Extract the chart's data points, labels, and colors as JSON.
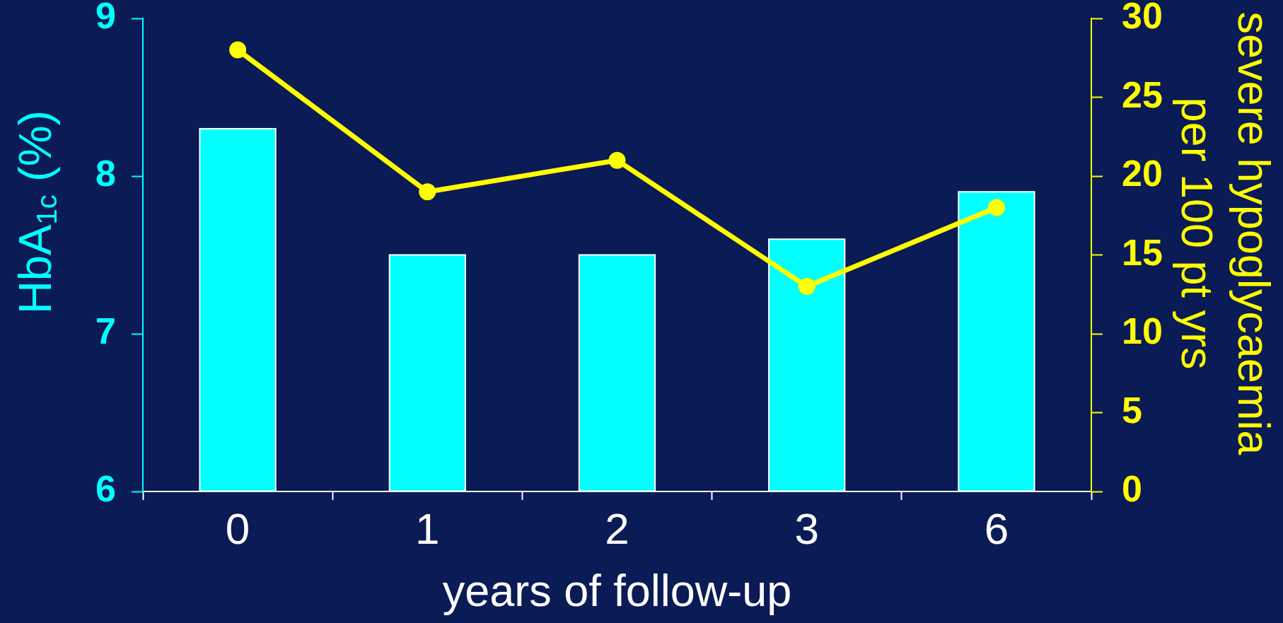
{
  "chart_data": {
    "type": "bar",
    "categories": [
      "0",
      "1",
      "2",
      "3",
      "6"
    ],
    "xlabel": "years of follow-up",
    "ylabel": "HbA$_{1c}$ (%)",
    "y2label": "severe hypoglycaemia per 100 pt yrs",
    "ylim": [
      6,
      9
    ],
    "yticks": [
      6,
      7,
      8,
      9
    ],
    "y2lim": [
      0,
      30
    ],
    "y2ticks": [
      0,
      5,
      10,
      15,
      20,
      25,
      30
    ],
    "series": [
      {
        "color": "#00ffff",
        "values": [
          8.3,
          7.5,
          7.5,
          7.6,
          7.9
        ]
      },
      {
        "type": "line",
        "axis": "y2",
        "color": "#ffff00",
        "marker": "circle",
        "values": [
          28,
          19,
          21,
          13,
          18
        ]
      }
    ]
  }
}
